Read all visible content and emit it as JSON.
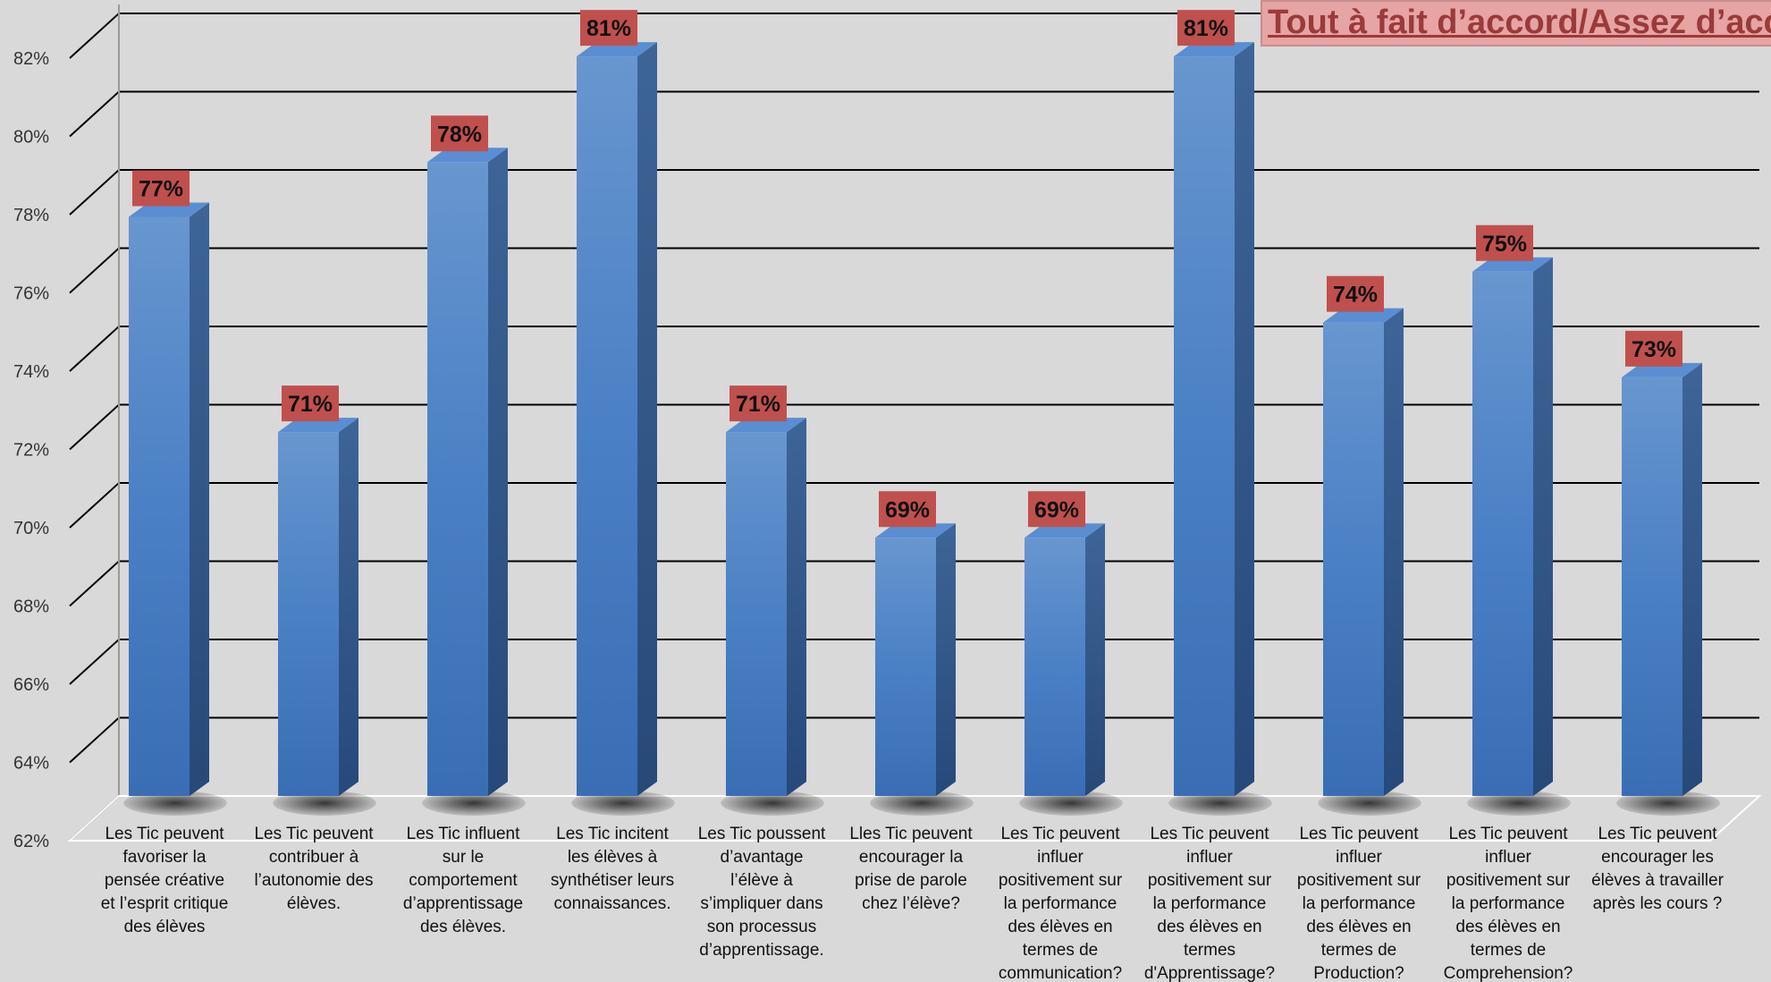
{
  "chart_data": {
    "type": "bar",
    "title": "",
    "xlabel": "",
    "ylabel": "",
    "ylim": [
      62,
      82
    ],
    "yticks": [
      "62%",
      "64%",
      "66%",
      "68%",
      "70%",
      "72%",
      "74%",
      "76%",
      "78%",
      "80%",
      "82%"
    ],
    "grid": true,
    "legend": {
      "position": "top-right",
      "text": "Tout à fait d’accord/Assez d’acco"
    },
    "categories": [
      "Les Tic peuvent favoriser la pensée créative et l’esprit critique des élèves",
      "Les Tic peuvent contribuer à l’autonomie des élèves.",
      "Les Tic influent sur le comportement d’apprentissage des élèves.",
      "Les Tic incitent les élèves à synthétiser leurs connaissances.",
      "Les Tic poussent d’avantage l’élève à s’impliquer dans son processus d’apprentissage.",
      "Lles Tic peuvent encourager la prise de parole chez l’élève?",
      "Les Tic peuvent influer positivement sur la performance des élèves en termes de communication?",
      "Les Tic peuvent influer positivement sur la performance des élèves en termes d'Apprentissage?",
      "Les Tic peuvent influer positivement sur la performance des élèves en termes de Production?",
      "Les Tic peuvent influer positivement sur la performance des élèves en termes de Comprehension?",
      "Les Tic peuvent encourager les élèves à travailler après les cours ?"
    ],
    "category_lines": [
      [
        "Les Tic peuvent",
        "favoriser la",
        "pensée créative",
        "et l’esprit critique",
        "des élèves"
      ],
      [
        "Les Tic peuvent",
        "contribuer à",
        "l’autonomie des",
        "élèves."
      ],
      [
        "Les Tic influent",
        "sur le",
        "comportement",
        "d’apprentissage",
        "des élèves."
      ],
      [
        "Les Tic incitent",
        "les élèves à",
        "synthétiser leurs",
        "connaissances."
      ],
      [
        "Les Tic poussent",
        "d’avantage",
        "l’élève à",
        "s’impliquer dans",
        "son processus",
        "d’apprentissage."
      ],
      [
        "Lles Tic peuvent",
        "encourager la",
        "prise de parole",
        "chez l’élève?"
      ],
      [
        "Les Tic peuvent",
        "influer",
        "positivement sur",
        "la performance",
        "des élèves en",
        "termes de",
        "communication?"
      ],
      [
        "Les Tic peuvent",
        "influer",
        "positivement sur",
        "la performance",
        "des élèves en",
        "termes",
        "d'Apprentissage?"
      ],
      [
        "Les Tic peuvent",
        "influer",
        "positivement sur",
        "la performance",
        "des élèves en",
        "termes de",
        "Production?"
      ],
      [
        "Les Tic peuvent",
        "influer",
        "positivement sur",
        "la performance",
        "des élèves en",
        "termes de",
        "Comprehension?"
      ],
      [
        "Les Tic peuvent",
        "encourager les",
        "élèves à travailler",
        "après les cours ?"
      ]
    ],
    "values": [
      76.8,
      71.3,
      78.2,
      80.9,
      71.3,
      68.6,
      68.6,
      80.9,
      74.1,
      75.4,
      72.7
    ],
    "data_labels": [
      "77%",
      "71%",
      "78%",
      "81%",
      "71%",
      "69%",
      "69%",
      "81%",
      "74%",
      "75%",
      "73%"
    ],
    "colors": {
      "bar_front": "#4a7fc4",
      "bar_side": "#2f5a8f",
      "bar_top": "#5a8ed2",
      "label_bg": "#c0504d",
      "background": "#d9d9d9",
      "grid": "#000000"
    }
  }
}
